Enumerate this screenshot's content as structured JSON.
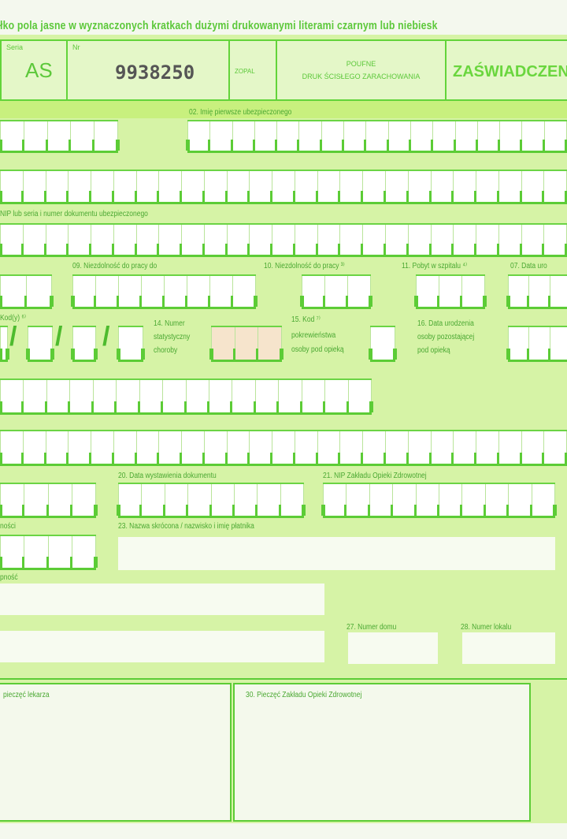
{
  "instruction": "łko pola jasne w wyznaczonych kratkach dużymi drukowanymi literami czarnym lub niebiesk",
  "header": {
    "series_label": "Seria",
    "series_value": "AS",
    "number_label": "Nr",
    "number_value": "9938250",
    "small_label": "ZOPAL",
    "confidential": "POUFNE",
    "strict_print": "DRUK ŚCISŁEGO ZARACHOWANIA",
    "title": "ZAŚWIADCZEN"
  },
  "labels": {
    "f02": "02. Imię pierwsze ubezpieczonego",
    "nip": "NIP lub seria i numer dokumentu ubezpieczonego",
    "f09": "09. Niezdolność do pracy do",
    "f10": "10. Niezdolność do pracy ³⁾",
    "f11": "11. Pobyt w szpitalu ⁴⁾",
    "f07": "07. Data uro",
    "kody": "Kod(y) ⁶⁾",
    "f14a": "14. Numer",
    "f14b": "statystyczny",
    "f14c": "choroby",
    "f15a": "15. Kod ⁷⁾",
    "f15b": "pokrewieństwa",
    "f15c": "osoby pod opieką",
    "f16a": "16. Data urodzenia",
    "f16b": "osoby pozostającej",
    "f16c": "pod opieką",
    "f20": "20. Data wystawienia dokumentu",
    "f21": "21. NIP Zakładu Opieki Zdrowotnej",
    "f22": "ności",
    "f23": "23. Nazwa skrócona / nazwisko i imię płatnika",
    "f24": "pność",
    "f27": "27. Numer domu",
    "f28": "28. Numer lokalu",
    "f29": "pieczęć lekarza",
    "f30": "30. Pieczęć Zakładu Opieki Zdrowotnej"
  },
  "colors": {
    "form_bg": "#d6f3a6",
    "line": "#5ccc36",
    "text": "#4aa832"
  }
}
